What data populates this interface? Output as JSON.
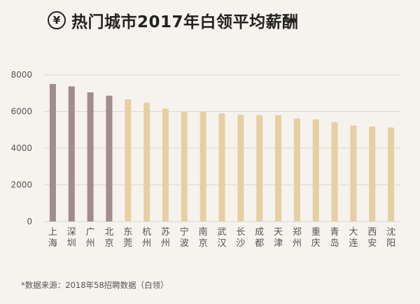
{
  "header": {
    "icon": "yen-icon",
    "icon_glyph": "¥",
    "title": "热门城市2017年白领平均薪酬"
  },
  "footnote": "*数据来源：2018年58招聘数据（白领）",
  "colors": {
    "highlight": "#a08d8e",
    "regular": "#e6cfa2",
    "grid": "#dcd8d2",
    "axis_text": "#555555"
  },
  "chart_data": {
    "type": "bar",
    "title": "热门城市2017年白领平均薪酬",
    "xlabel": "",
    "ylabel": "",
    "ylim": [
      0,
      8000
    ],
    "yticks": [
      0,
      2000,
      4000,
      6000,
      8000
    ],
    "grid": true,
    "categories": [
      "上海",
      "深圳",
      "广州",
      "北京",
      "东莞",
      "杭州",
      "苏州",
      "宁波",
      "南京",
      "武汉",
      "长沙",
      "成都",
      "天津",
      "郑州",
      "重庆",
      "青岛",
      "大连",
      "西安",
      "沈阳"
    ],
    "values": [
      7500,
      7370,
      7040,
      6860,
      6660,
      6480,
      6150,
      5990,
      5980,
      5900,
      5830,
      5800,
      5800,
      5620,
      5570,
      5420,
      5230,
      5180,
      5120
    ],
    "highlight_count": 4
  }
}
